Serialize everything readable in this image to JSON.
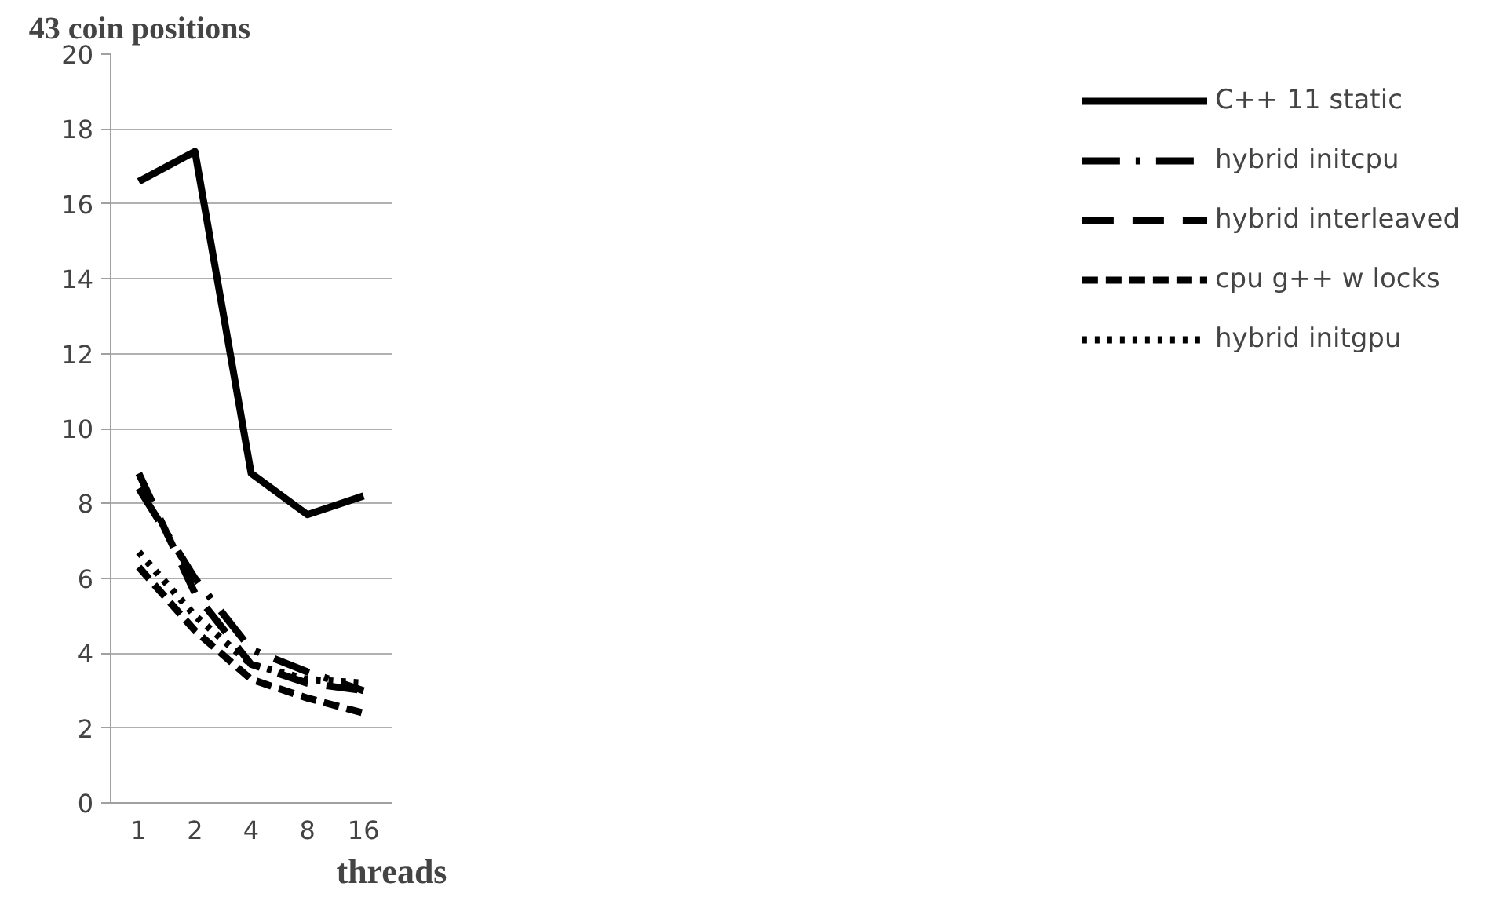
{
  "chart_data": {
    "type": "line",
    "title": "43 coin positions",
    "xlabel": "threads",
    "categories": [
      "1",
      "2",
      "4",
      "8",
      "16"
    ],
    "ylim": [
      0,
      20
    ],
    "yticks": [
      0,
      2,
      4,
      6,
      8,
      10,
      12,
      14,
      16,
      18,
      20
    ],
    "grid": "y",
    "legend": "right",
    "series": [
      {
        "name": "C++ 11 static",
        "color": "#000000",
        "line_style": "solid",
        "values": [
          16.6,
          17.4,
          8.8,
          7.7,
          8.2
        ]
      },
      {
        "name": "hybrid initcpu",
        "color": "#000000",
        "line_style": "dashdot",
        "values": [
          8.4,
          6.0,
          4.1,
          3.5,
          3.0
        ]
      },
      {
        "name": "hybrid interleaved",
        "color": "#000000",
        "line_style": "longdash",
        "values": [
          8.8,
          5.6,
          3.7,
          3.2,
          3.0
        ]
      },
      {
        "name": "cpu g++ w locks",
        "color": "#000000",
        "line_style": "dashed",
        "values": [
          6.3,
          4.6,
          3.3,
          2.8,
          2.4
        ]
      },
      {
        "name": "hybrid initgpu",
        "color": "#000000",
        "line_style": "dotted",
        "values": [
          6.7,
          5.0,
          3.7,
          3.3,
          3.2
        ]
      }
    ]
  }
}
